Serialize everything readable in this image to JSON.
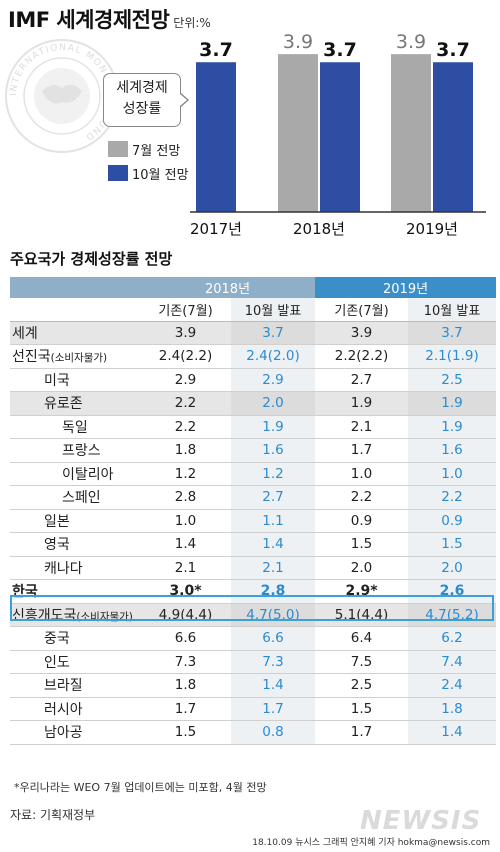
{
  "header": {
    "title": "IMF 세계경제전망",
    "unit": "단위:%"
  },
  "seal_text": "INTERNATIONAL MONETARY FUND",
  "colors": {
    "july": "#a9a9a9",
    "october": "#2e4ea3",
    "highlight_text": "#2a8bd1",
    "year2018_header": "#8faec7",
    "year2019_header": "#3a8fc9",
    "korea_box": "#3aa0d5"
  },
  "chart_data": {
    "type": "bar",
    "categories": [
      "2017년",
      "2018년",
      "2019년"
    ],
    "series": [
      {
        "name": "7월 전망",
        "values": [
          null,
          3.9,
          3.9
        ]
      },
      {
        "name": "10월 전망",
        "values": [
          3.7,
          3.7,
          3.7
        ]
      }
    ],
    "annotation": "세계경제 성장률",
    "annotation_lines": [
      "세계경제",
      "성장률"
    ],
    "ylim": [
      0,
      4.2
    ]
  },
  "table": {
    "title": "주요국가 경제성장률 전망",
    "years": [
      "2018년",
      "2019년"
    ],
    "subheaders": [
      "기존(7월)",
      "10월 발표",
      "기존(7월)",
      "10월 발표"
    ],
    "rows": [
      {
        "name": "세계",
        "small": "",
        "indent": 0,
        "gray": true,
        "values": [
          "3.9",
          "3.7",
          "3.9",
          "3.7"
        ]
      },
      {
        "name": "선진국",
        "small": "(소비자물가)",
        "indent": 0,
        "gray": false,
        "values": [
          "2.4(2.2)",
          "2.4(2.0)",
          "2.2(2.2)",
          "2.1(1.9)"
        ]
      },
      {
        "name": "미국",
        "small": "",
        "indent": 1,
        "gray": false,
        "values": [
          "2.9",
          "2.9",
          "2.7",
          "2.5"
        ]
      },
      {
        "name": "유로존",
        "small": "",
        "indent": 1,
        "gray": true,
        "values": [
          "2.2",
          "2.0",
          "1.9",
          "1.9"
        ]
      },
      {
        "name": "독일",
        "small": "",
        "indent": 2,
        "gray": false,
        "values": [
          "2.2",
          "1.9",
          "2.1",
          "1.9"
        ]
      },
      {
        "name": "프랑스",
        "small": "",
        "indent": 2,
        "gray": false,
        "values": [
          "1.8",
          "1.6",
          "1.7",
          "1.6"
        ]
      },
      {
        "name": "이탈리아",
        "small": "",
        "indent": 2,
        "gray": false,
        "values": [
          "1.2",
          "1.2",
          "1.0",
          "1.0"
        ]
      },
      {
        "name": "스페인",
        "small": "",
        "indent": 2,
        "gray": false,
        "values": [
          "2.8",
          "2.7",
          "2.2",
          "2.2"
        ]
      },
      {
        "name": "일본",
        "small": "",
        "indent": 1,
        "gray": false,
        "values": [
          "1.0",
          "1.1",
          "0.9",
          "0.9"
        ]
      },
      {
        "name": "영국",
        "small": "",
        "indent": 1,
        "gray": false,
        "values": [
          "1.4",
          "1.4",
          "1.5",
          "1.5"
        ]
      },
      {
        "name": "캐나다",
        "small": "",
        "indent": 1,
        "gray": false,
        "values": [
          "2.1",
          "2.1",
          "2.0",
          "2.0"
        ]
      },
      {
        "name": "한국",
        "small": "",
        "indent": 0,
        "gray": false,
        "korea": true,
        "values": [
          "3.0*",
          "2.8",
          "2.9*",
          "2.6"
        ]
      },
      {
        "name": "신흥개도국",
        "small": "(소비자물가)",
        "indent": 0,
        "gray": true,
        "values": [
          "4.9(4.4)",
          "4.7(5.0)",
          "5.1(4.4)",
          "4.7(5.2)"
        ]
      },
      {
        "name": "중국",
        "small": "",
        "indent": 1,
        "gray": false,
        "values": [
          "6.6",
          "6.6",
          "6.4",
          "6.2"
        ]
      },
      {
        "name": "인도",
        "small": "",
        "indent": 1,
        "gray": false,
        "values": [
          "7.3",
          "7.3",
          "7.5",
          "7.4"
        ]
      },
      {
        "name": "브라질",
        "small": "",
        "indent": 1,
        "gray": false,
        "values": [
          "1.8",
          "1.4",
          "2.5",
          "2.4"
        ]
      },
      {
        "name": "러시아",
        "small": "",
        "indent": 1,
        "gray": false,
        "values": [
          "1.7",
          "1.7",
          "1.5",
          "1.8"
        ]
      },
      {
        "name": "남아공",
        "small": "",
        "indent": 1,
        "gray": false,
        "values": [
          "1.5",
          "0.8",
          "1.7",
          "1.4"
        ]
      }
    ]
  },
  "footnote": "*우리나라는 WEO 7월 업데이트에는 미포함, 4월 전망",
  "source": "자료: 기획재정부",
  "credit": "18.10.09  뉴시스 그래픽 안지혜 기자 hokma@newsis.com",
  "watermark": "NEWSIS"
}
